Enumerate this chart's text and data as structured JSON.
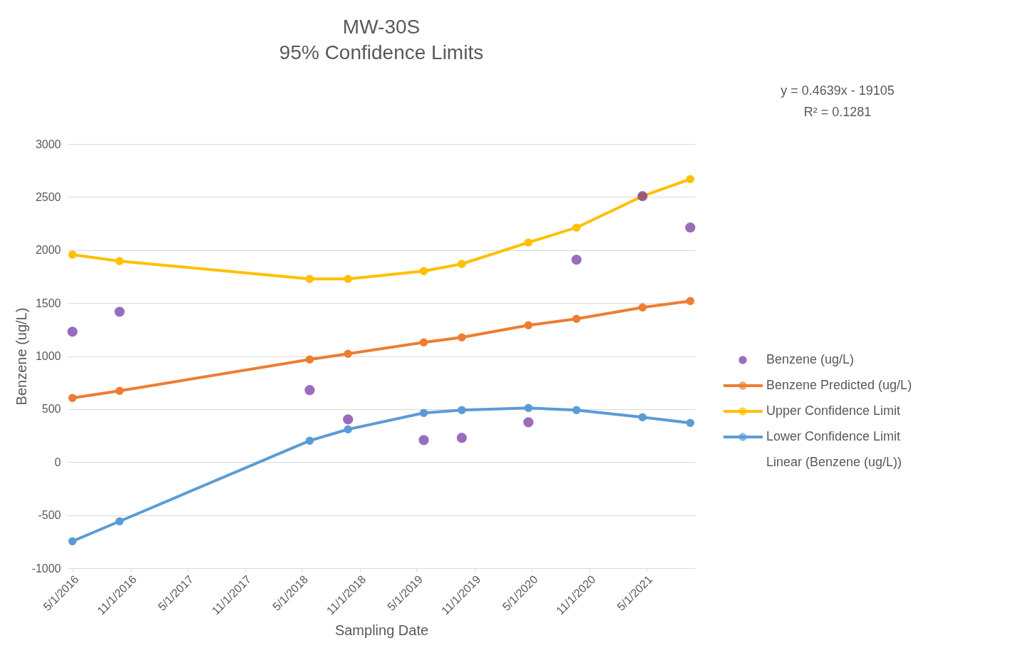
{
  "chart_data": {
    "type": "line",
    "title": "MW-30S",
    "subtitle": "95% Confidence Limits",
    "xlabel": "Sampling Date",
    "ylabel": "Benzene (ug/L)",
    "x": [
      "2016-05-01",
      "2016-09-28",
      "2018-05-26",
      "2018-09-25",
      "2019-05-24",
      "2019-09-22",
      "2020-04-21",
      "2020-09-21",
      "2021-04-19",
      "2021-09-18"
    ],
    "series": [
      {
        "name": "Benzene (ug/L)",
        "type": "scatter",
        "color": "#7030a0",
        "values": [
          1230,
          1418,
          679,
          403,
          208,
          229,
          376,
          1909,
          2508,
          2212
        ]
      },
      {
        "name": "Benzene Predicted (ug/L)",
        "color": "#ed7d31",
        "values": [
          605,
          672,
          968,
          1022,
          1129,
          1176,
          1291,
          1351,
          1459,
          1519
        ]
      },
      {
        "name": "Upper Confidence Limit",
        "color": "#ffc000",
        "values": [
          1956,
          1896,
          1728,
          1728,
          1802,
          1869,
          2071,
          2212,
          2508,
          2669
        ]
      },
      {
        "name": "Lower Confidence Limit",
        "color": "#5b9bd5",
        "values": [
          -746,
          -558,
          202,
          309,
          464,
          491,
          511,
          491,
          424,
          370
        ]
      },
      {
        "name": "Linear (Benzene (ug/L))",
        "color": null,
        "values": [
          null,
          null,
          null,
          null,
          null,
          null,
          null,
          null,
          null,
          null
        ]
      }
    ],
    "xlim": [
      "2016-04-16",
      "2021-10-03"
    ],
    "xticks": [
      {
        "value": "2016-05-01",
        "label": "5/1/2016"
      },
      {
        "value": "2016-11-01",
        "label": "11/1/2016"
      },
      {
        "value": "2017-05-01",
        "label": "5/1/2017"
      },
      {
        "value": "2017-11-01",
        "label": "11/1/2017"
      },
      {
        "value": "2018-05-01",
        "label": "5/1/2018"
      },
      {
        "value": "2018-11-01",
        "label": "11/1/2018"
      },
      {
        "value": "2019-05-01",
        "label": "5/1/2019"
      },
      {
        "value": "2019-11-01",
        "label": "11/1/2019"
      },
      {
        "value": "2020-05-01",
        "label": "5/1/2020"
      },
      {
        "value": "2020-11-01",
        "label": "11/1/2020"
      },
      {
        "value": "2021-05-01",
        "label": "5/1/2021"
      }
    ],
    "ylim": [
      -1000,
      3000
    ],
    "yticks": [
      -1000,
      -500,
      0,
      500,
      1000,
      1500,
      2000,
      2500,
      3000
    ],
    "grid": "y",
    "legend": "right",
    "marker": "circle",
    "line_style": "solid",
    "annotations": [
      "y = 0.4639x - 19105",
      "R² = 0.1281"
    ]
  }
}
